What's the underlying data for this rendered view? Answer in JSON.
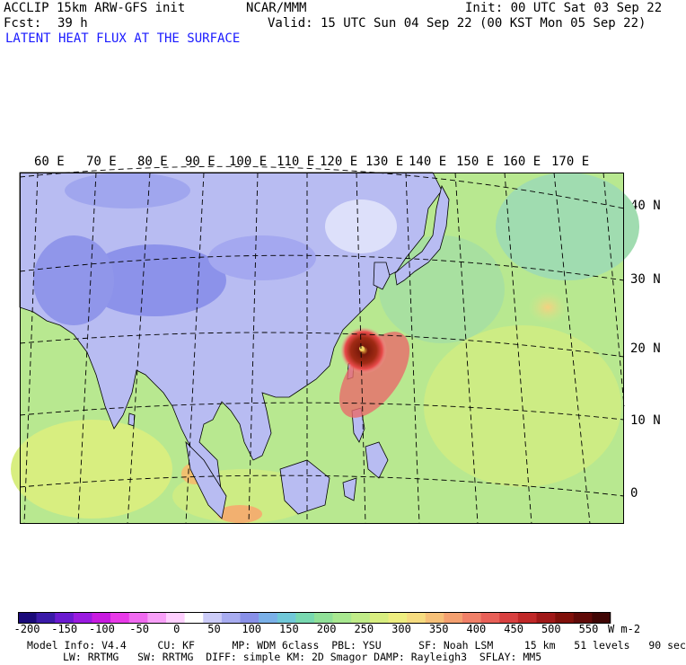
{
  "header": {
    "model": "ACCLIP 15km ARW-GFS init",
    "org": "NCAR/MMM",
    "init": "Init: 00 UTC Sat 03 Sep 22",
    "fcst_label": "Fcst:",
    "fcst_value": "39 h",
    "valid": "Valid: 15 UTC Sun 04 Sep 22 (00 KST Mon 05 Sep 22)",
    "field_title": "LATENT HEAT FLUX AT THE SURFACE"
  },
  "map": {
    "lon_labels": [
      "60 E",
      "70 E",
      "80 E",
      "90 E",
      "100 E",
      "110 E",
      "120 E",
      "130 E",
      "140 E",
      "150 E",
      "160 E",
      "170 E"
    ],
    "lat_labels": [
      "40 N",
      "30 N",
      "20 N",
      "10 N",
      "0"
    ],
    "colors": {
      "land_low": "#b4b8f2",
      "land_high": "#8a90ea",
      "ocean_low": "#a8e6a0",
      "ocean_mid": "#cde88a",
      "ocean_warm": "#f2e690",
      "storm_core": "#7a1a0a",
      "storm_ring": "#e84a4a"
    }
  },
  "colorbar": {
    "labels": [
      "-200",
      "-150",
      "-100",
      "-50",
      "0",
      "50",
      "100",
      "150",
      "200",
      "250",
      "300",
      "350",
      "400",
      "450",
      "500",
      "550"
    ],
    "unit": "W m-2",
    "colors": [
      "#1a0a7a",
      "#3a1aa8",
      "#6a1ad0",
      "#9a1ae0",
      "#c81ae0",
      "#e83ae8",
      "#f06af0",
      "#f8a0f8",
      "#ffd0ff",
      "#ffffff",
      "#ccccf8",
      "#a8acf0",
      "#8890e8",
      "#7ab0e8",
      "#70c8d8",
      "#78d8b0",
      "#90e098",
      "#a8e890",
      "#c0ec88",
      "#d8ee80",
      "#eeee80",
      "#f6dc80",
      "#f6c078",
      "#f4a070",
      "#f08068",
      "#e86058",
      "#d84040",
      "#c02828",
      "#a01818",
      "#80100a",
      "#600a08",
      "#400605"
    ]
  },
  "footer": {
    "line1": "Model Info: V4.4     CU: KF      MP: WDM 6class  PBL: YSU      SF: Noah LSM     15 km   51 levels   90 sec",
    "line2": "LW: RRTMG   SW: RRTMG  DIFF: simple KM: 2D Smagor DAMP: Rayleigh3  SFLAY: MM5"
  }
}
